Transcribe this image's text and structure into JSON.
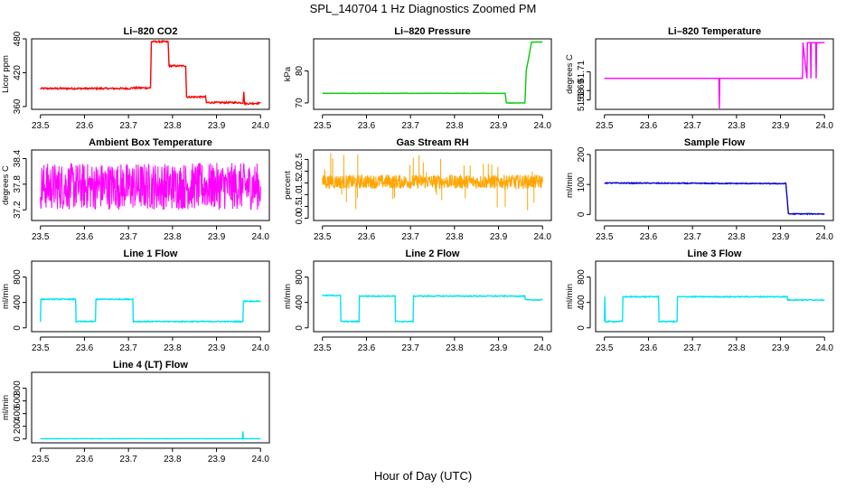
{
  "figure": {
    "title": "SPL_140704  1 Hz Diagnostics Zoomed PM",
    "xlabel": "Hour of Day (UTC)"
  },
  "chart_data": [
    {
      "type": "line",
      "title": "Li–820 CO2",
      "ylabel": "Licor ppm",
      "color": "#ff0000",
      "xlim": [
        23.48,
        24.02
      ],
      "ylim": [
        355,
        480
      ],
      "xticks": [
        "23.5",
        "23.6",
        "23.7",
        "23.8",
        "23.9",
        "24.0"
      ],
      "yticks": [
        {
          "v": 360,
          "l": "360"
        },
        {
          "v": 420,
          "l": "420"
        },
        {
          "v": 480,
          "l": "480"
        }
      ],
      "x": [
        23.5,
        23.705,
        23.706,
        23.75,
        23.752,
        23.79,
        23.792,
        23.83,
        23.832,
        23.875,
        23.877,
        23.96,
        23.962,
        23.964,
        24.0
      ],
      "y": [
        392,
        392,
        393,
        393,
        475,
        475,
        432,
        432,
        377,
        377,
        367,
        367,
        385,
        365,
        366
      ],
      "noise": 1.5
    },
    {
      "type": "line",
      "title": "Li–820 Pressure",
      "ylabel": "kPa",
      "color": "#00cc00",
      "xlim": [
        23.48,
        24.02
      ],
      "ylim": [
        68,
        90
      ],
      "xticks": [
        "23.5",
        "23.6",
        "23.7",
        "23.8",
        "23.9",
        "24.0"
      ],
      "yticks": [
        {
          "v": 70,
          "l": "70"
        },
        {
          "v": 80,
          "l": "80"
        }
      ],
      "x": [
        23.5,
        23.915,
        23.918,
        23.96,
        23.963,
        23.975,
        23.99,
        24.0
      ],
      "y": [
        73,
        73,
        70,
        70,
        80,
        89,
        89,
        89
      ],
      "noise": 0.05
    },
    {
      "type": "line",
      "title": "Li–820 Temperature",
      "ylabel": "degrees C",
      "color": "#ff00ff",
      "xlim": [
        23.48,
        24.02
      ],
      "ylim": [
        51.67,
        51.745
      ],
      "xticks": [
        "23.5",
        "23.6",
        "23.7",
        "23.8",
        "23.9",
        "24.0"
      ],
      "yticks": [
        {
          "v": 51.68,
          "l": "51.68"
        },
        {
          "v": 51.69,
          "l": "51.69"
        },
        {
          "v": 51.71,
          "l": "51.71"
        }
      ],
      "x": [
        23.5,
        23.76,
        23.761,
        23.762,
        23.763,
        23.9,
        23.901,
        23.95,
        23.951,
        23.96,
        23.961,
        23.968,
        23.969,
        23.97,
        23.971,
        23.98,
        23.981,
        23.982,
        23.983,
        24.0
      ],
      "y": [
        51.703,
        51.703,
        51.671,
        51.703,
        51.703,
        51.703,
        51.703,
        51.703,
        51.741,
        51.703,
        51.741,
        51.741,
        51.703,
        51.741,
        51.741,
        51.741,
        51.703,
        51.741,
        51.741,
        51.741
      ],
      "noise": 0
    },
    {
      "type": "line",
      "title": "Ambient Box Temperature",
      "ylabel": "degrees C",
      "color": "#ff00ff",
      "xlim": [
        23.48,
        24.02
      ],
      "ylim": [
        36.95,
        38.6
      ],
      "xticks": [
        "23.5",
        "23.6",
        "23.7",
        "23.8",
        "23.9",
        "24.0"
      ],
      "yticks": [
        {
          "v": 37.2,
          "l": "37.2"
        },
        {
          "v": 37.8,
          "l": "37.8"
        },
        {
          "v": 38.4,
          "l": "38.4"
        }
      ],
      "x": [
        23.5,
        24.0
      ],
      "y": [
        37.75,
        37.75
      ],
      "noise": 0.55,
      "dense": true
    },
    {
      "type": "line",
      "title": "Gas Stream RH",
      "ylabel": "percent",
      "color": "#ffa500",
      "xlim": [
        23.48,
        24.02
      ],
      "ylim": [
        -0.1,
        2.9
      ],
      "xticks": [
        "23.5",
        "23.6",
        "23.7",
        "23.8",
        "23.9",
        "24.0"
      ],
      "yticks": [
        {
          "v": 0.0,
          "l": "0.0"
        },
        {
          "v": 0.5,
          "l": "0.5"
        },
        {
          "v": 1.0,
          "l": "1.0"
        },
        {
          "v": 1.5,
          "l": "1.5"
        },
        {
          "v": 2.0,
          "l": "2.0"
        },
        {
          "v": 2.5,
          "l": "2.5"
        }
      ],
      "x": [
        23.5,
        24.0
      ],
      "y": [
        1.55,
        1.55
      ],
      "noise": 0.3,
      "dense": true,
      "points": true
    },
    {
      "type": "line",
      "title": "Sample Flow",
      "ylabel": "ml/min",
      "color": "#0000cc",
      "xlim": [
        23.48,
        24.02
      ],
      "ylim": [
        -20,
        215
      ],
      "xticks": [
        "23.5",
        "23.6",
        "23.7",
        "23.8",
        "23.9",
        "24.0"
      ],
      "yticks": [
        {
          "v": 0,
          "l": "0"
        },
        {
          "v": 100,
          "l": "100"
        },
        {
          "v": 200,
          "l": "200"
        }
      ],
      "x": [
        23.5,
        23.91,
        23.912,
        23.918,
        24.0
      ],
      "y": [
        105,
        103,
        105,
        2,
        2
      ],
      "noise": 1.5
    },
    {
      "type": "line",
      "title": "Line 1 Flow",
      "ylabel": "ml/min",
      "color": "#00e5ee",
      "xlim": [
        23.48,
        24.02
      ],
      "ylim": [
        -60,
        1050
      ],
      "xticks": [
        "23.5",
        "23.6",
        "23.7",
        "23.8",
        "23.9",
        "24.0"
      ],
      "yticks": [
        {
          "v": 0,
          "l": "0"
        },
        {
          "v": 400,
          "l": "400"
        },
        {
          "v": 800,
          "l": "800"
        }
      ],
      "x": [
        23.5,
        23.501,
        23.502,
        23.58,
        23.581,
        23.625,
        23.626,
        23.71,
        23.711,
        23.96,
        23.961,
        24.0
      ],
      "y": [
        100,
        440,
        450,
        450,
        100,
        100,
        450,
        450,
        100,
        100,
        420,
        420
      ],
      "noise": 8
    },
    {
      "type": "line",
      "title": "Line 2 Flow",
      "ylabel": "ml/min",
      "color": "#00e5ee",
      "xlim": [
        23.48,
        24.02
      ],
      "ylim": [
        -60,
        1050
      ],
      "xticks": [
        "23.5",
        "23.6",
        "23.7",
        "23.8",
        "23.9",
        "24.0"
      ],
      "yticks": [
        {
          "v": 0,
          "l": "0"
        },
        {
          "v": 400,
          "l": "400"
        },
        {
          "v": 800,
          "l": "800"
        }
      ],
      "x": [
        23.5,
        23.541,
        23.542,
        23.583,
        23.584,
        23.665,
        23.666,
        23.706,
        23.707,
        23.96,
        23.961,
        24.0
      ],
      "y": [
        510,
        510,
        100,
        100,
        500,
        500,
        100,
        100,
        500,
        500,
        440,
        440
      ],
      "noise": 8
    },
    {
      "type": "line",
      "title": "Line 3 Flow",
      "ylabel": "ml/min",
      "color": "#00e5ee",
      "xlim": [
        23.48,
        24.02
      ],
      "ylim": [
        -60,
        1050
      ],
      "xticks": [
        "23.5",
        "23.6",
        "23.7",
        "23.8",
        "23.9",
        "24.0"
      ],
      "yticks": [
        {
          "v": 0,
          "l": "0"
        },
        {
          "v": 400,
          "l": "400"
        },
        {
          "v": 800,
          "l": "800"
        }
      ],
      "x": [
        23.5,
        23.501,
        23.502,
        23.541,
        23.542,
        23.623,
        23.624,
        23.665,
        23.666,
        23.915,
        23.916,
        24.0
      ],
      "y": [
        100,
        490,
        100,
        100,
        490,
        490,
        100,
        100,
        490,
        490,
        440,
        440
      ],
      "noise": 8
    },
    {
      "type": "line",
      "title": "Line 4 (LT) Flow",
      "ylabel": "ml/min",
      "color": "#00e5ee",
      "xlim": [
        23.48,
        24.02
      ],
      "ylim": [
        -60,
        1050
      ],
      "xticks": [
        "23.5",
        "23.6",
        "23.7",
        "23.8",
        "23.9",
        "24.0"
      ],
      "yticks": [
        {
          "v": 0,
          "l": "0"
        },
        {
          "v": 200,
          "l": "200"
        },
        {
          "v": 400,
          "l": "400"
        },
        {
          "v": 600,
          "l": "600"
        },
        {
          "v": 800,
          "l": "800"
        }
      ],
      "x": [
        23.5,
        23.959,
        23.96,
        23.961,
        24.0
      ],
      "y": [
        5,
        5,
        120,
        5,
        5
      ],
      "noise": 1
    }
  ]
}
